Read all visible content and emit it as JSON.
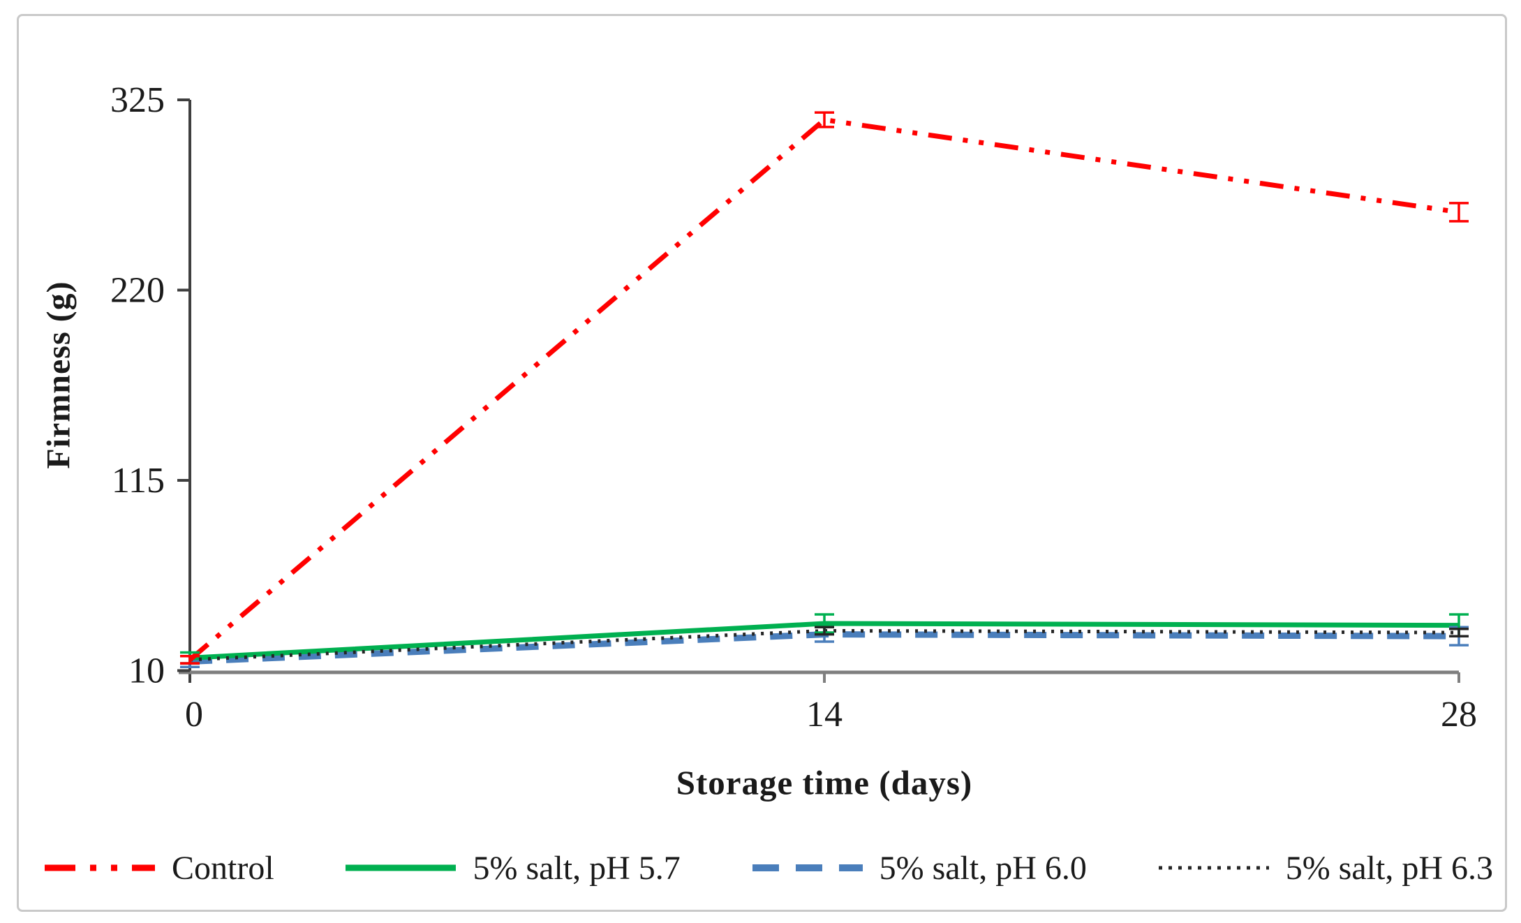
{
  "frame": {
    "border_color": "#c9c9c9",
    "background": "#ffffff"
  },
  "chart_data": {
    "type": "line",
    "title": "",
    "xlabel": "Storage time (days)",
    "ylabel": "Firmness (g)",
    "x": [
      0,
      14,
      28
    ],
    "x_tick_labels": [
      "0",
      "14",
      "28"
    ],
    "y_ticks": [
      10,
      115,
      220,
      325
    ],
    "y_tick_labels": [
      "10",
      "115",
      "220",
      "325"
    ],
    "ylim": [
      10,
      325
    ],
    "xlim": [
      0,
      28
    ],
    "grid": false,
    "legend_position": "bottom",
    "axis_colors": {
      "y_axis": "#3f3f3f",
      "x_axis": "#7f7f7f",
      "text": "#1a1a1a"
    },
    "series": [
      {
        "key": "control",
        "name": "Control",
        "color": "#ff0000",
        "line_style": "dash-dot-dot",
        "values": [
          16,
          314,
          263
        ],
        "errors": [
          2,
          4,
          5
        ]
      },
      {
        "key": "salt-ph-5-7",
        "name": "5% salt, pH 5.7",
        "color": "#00b050",
        "line_style": "solid",
        "values": [
          17,
          36,
          35
        ],
        "errors": [
          3,
          5,
          6
        ]
      },
      {
        "key": "salt-ph-6-0",
        "name": "5% salt, pH 6.0",
        "color": "#4a7ebb",
        "line_style": "dashed",
        "values": [
          15,
          30,
          29
        ],
        "errors": [
          3,
          4,
          5
        ]
      },
      {
        "key": "salt-ph-6-3",
        "name": "5% salt, pH 6.3",
        "color": "#262626",
        "line_style": "dotted",
        "values": [
          16,
          32,
          31
        ],
        "errors": [
          2,
          2,
          2
        ]
      }
    ]
  }
}
